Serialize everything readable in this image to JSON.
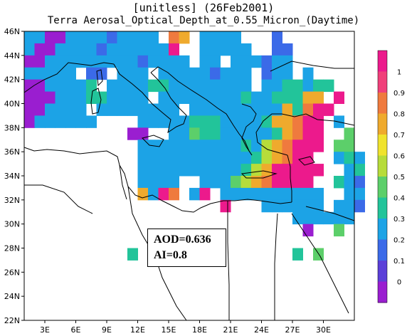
{
  "title": {
    "line1": "[unitless] (26Feb2001)",
    "line2": "Terra Aerosal_Optical_Depth_at_0.55_Micron_(Daytime)"
  },
  "map": {
    "lon_range": [
      1,
      33
    ],
    "lat_range": [
      22,
      46
    ],
    "lon_ticks": [
      "3E",
      "6E",
      "9E",
      "12E",
      "15E",
      "18E",
      "21E",
      "24E",
      "27E",
      "30E"
    ],
    "lat_ticks": [
      "22N",
      "24N",
      "26N",
      "28N",
      "30N",
      "32N",
      "34N",
      "36N",
      "38N",
      "40N",
      "42N",
      "44N",
      "46N"
    ]
  },
  "colorbar": {
    "labels": [
      "1",
      "0.9",
      "0.8",
      "0.7",
      "0.6",
      "0.5",
      "0.4",
      "0.3",
      "0.2",
      "0.1",
      "0"
    ],
    "colors": [
      "#ec1a8c",
      "#f0407a",
      "#ef7a3e",
      "#efaa2d",
      "#f0e32d",
      "#b7dc3a",
      "#5ccf6a",
      "#22c49a",
      "#1ca3e6",
      "#3b6ae8",
      "#5b3fd8",
      "#9a1ed0"
    ]
  },
  "annotation": {
    "aod": "AOD=0.636",
    "ai": "AI=0.8"
  }
}
